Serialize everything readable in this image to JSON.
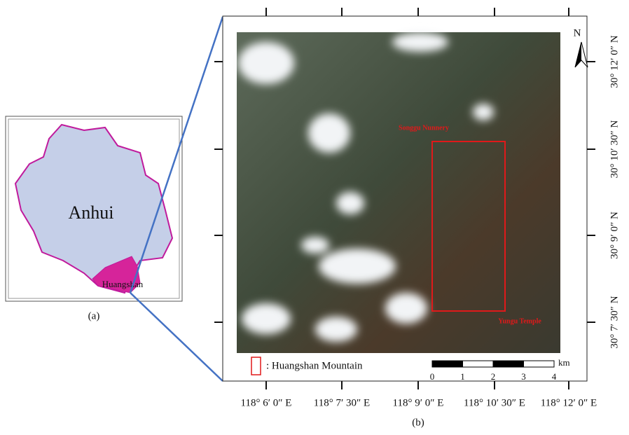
{
  "panel_a": {
    "region": "Anhui",
    "highlight": "Huangshan",
    "caption": "(a)"
  },
  "panel_b": {
    "north": "N",
    "latitude_labels": [
      "30° 12′ 0″ N",
      "30° 10′ 30″ N",
      "30° 9′ 0″ N",
      "30° 7′ 30″ N"
    ],
    "longitude_labels": [
      "118° 6′ 0″ E",
      "118° 7′ 30″ E",
      "118° 9′ 0″ E",
      "118° 10′ 30″ E",
      "118° 12′ 0″ E"
    ],
    "places": [
      "Songgu Nunnery",
      "Yungu Temple"
    ],
    "legend": ": Huangshan Mountain",
    "scale": {
      "ticks": [
        0,
        1,
        2,
        3,
        4
      ],
      "unit": "km"
    },
    "caption": "(b)"
  }
}
